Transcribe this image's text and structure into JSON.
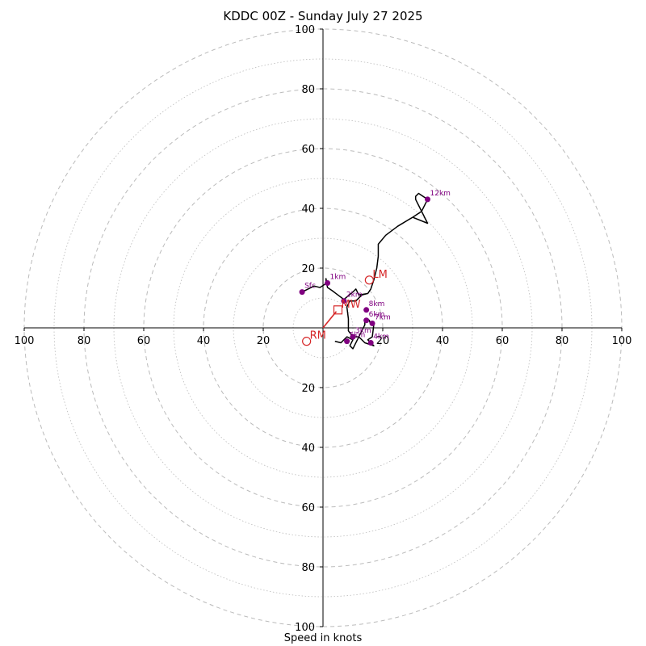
{
  "chart_data": {
    "type": "scatter",
    "subtype": "hodograph",
    "title": "KDDC 00Z - Sunday July 27 2025",
    "xlabel": "Speed in knots",
    "max_speed": 100,
    "ring_labels": [
      "20",
      "40",
      "60",
      "80",
      "100"
    ],
    "axis_tick_labels": {
      "x": [
        "100",
        "80",
        "60",
        "40",
        "20",
        "20",
        "40",
        "60",
        "80",
        "100"
      ],
      "y": [
        "100",
        "80",
        "60",
        "40",
        "20",
        "20",
        "40",
        "60",
        "80",
        "100"
      ]
    },
    "grid": "dashed rings every 20 kt, dotted rings every 10 kt",
    "colors": {
      "trace": "#000000",
      "height_markers": "#800080",
      "storm_motion": "#d62728",
      "grid": "#bbbbbb"
    },
    "trace_uv": [
      [
        -7,
        12
      ],
      [
        -5,
        13
      ],
      [
        -3,
        14
      ],
      [
        -1,
        13.5
      ],
      [
        0.5,
        14.5
      ],
      [
        1,
        15
      ],
      [
        1,
        16.5
      ],
      [
        1.5,
        13.5
      ],
      [
        3,
        12.5
      ],
      [
        5,
        11
      ],
      [
        7,
        9.5
      ],
      [
        10,
        12
      ],
      [
        11,
        13
      ],
      [
        12,
        11
      ],
      [
        15,
        11.5
      ],
      [
        16,
        13
      ],
      [
        17,
        16
      ],
      [
        18,
        20
      ],
      [
        18.5,
        24
      ],
      [
        18.5,
        28
      ],
      [
        21,
        31
      ],
      [
        25,
        34
      ],
      [
        30,
        37
      ],
      [
        35,
        35
      ],
      [
        33,
        39
      ],
      [
        31,
        43
      ],
      [
        31,
        44
      ],
      [
        32,
        45
      ],
      [
        35,
        43
      ],
      [
        33,
        39
      ],
      [
        30,
        37
      ],
      [
        25,
        34
      ],
      [
        21,
        31
      ],
      [
        18.5,
        28
      ],
      [
        18.5,
        24
      ],
      [
        18,
        20
      ],
      [
        17,
        16
      ],
      [
        16,
        13
      ],
      [
        15,
        11.5
      ],
      [
        13,
        11
      ],
      [
        11,
        9
      ],
      [
        9,
        9
      ],
      [
        8,
        7
      ],
      [
        8.5,
        3
      ],
      [
        8.5,
        -1
      ],
      [
        10,
        -3
      ],
      [
        12,
        -3
      ],
      [
        14,
        1
      ],
      [
        14,
        3
      ],
      [
        15,
        3
      ],
      [
        15.5,
        2.5
      ],
      [
        16,
        1
      ],
      [
        17,
        1
      ],
      [
        16.5,
        -3
      ],
      [
        15,
        -4
      ],
      [
        16,
        -5
      ],
      [
        17,
        -6
      ],
      [
        14,
        -5
      ],
      [
        12,
        -3
      ],
      [
        10,
        -7
      ],
      [
        9,
        -6
      ],
      [
        10,
        -4
      ],
      [
        8,
        -3
      ],
      [
        6,
        -5
      ],
      [
        4,
        -4.5
      ]
    ],
    "height_points": [
      {
        "label": "Sfc",
        "u": -7,
        "v": 12
      },
      {
        "label": "1km",
        "u": 1.5,
        "v": 15
      },
      {
        "label": "2km",
        "u": 7,
        "v": 9
      },
      {
        "label": "3km",
        "u": 10,
        "v": -3
      },
      {
        "label": "4km",
        "u": 16,
        "v": -5
      },
      {
        "label": "5km",
        "u": 8,
        "v": -4.5
      },
      {
        "label": "6km",
        "u": 14.5,
        "v": 2.5
      },
      {
        "label": "7km",
        "u": 16.5,
        "v": 1.5
      },
      {
        "label": "8km",
        "u": 14.5,
        "v": 6
      },
      {
        "label": "12km",
        "u": 35,
        "v": 43
      }
    ],
    "storm_motion": [
      {
        "label": "LM",
        "u": 15.5,
        "v": 16,
        "marker": "circle"
      },
      {
        "label": "RM",
        "u": -5.5,
        "v": -4.5,
        "marker": "circle"
      },
      {
        "label": "MW",
        "u": 5,
        "v": 6,
        "marker": "square"
      }
    ]
  }
}
